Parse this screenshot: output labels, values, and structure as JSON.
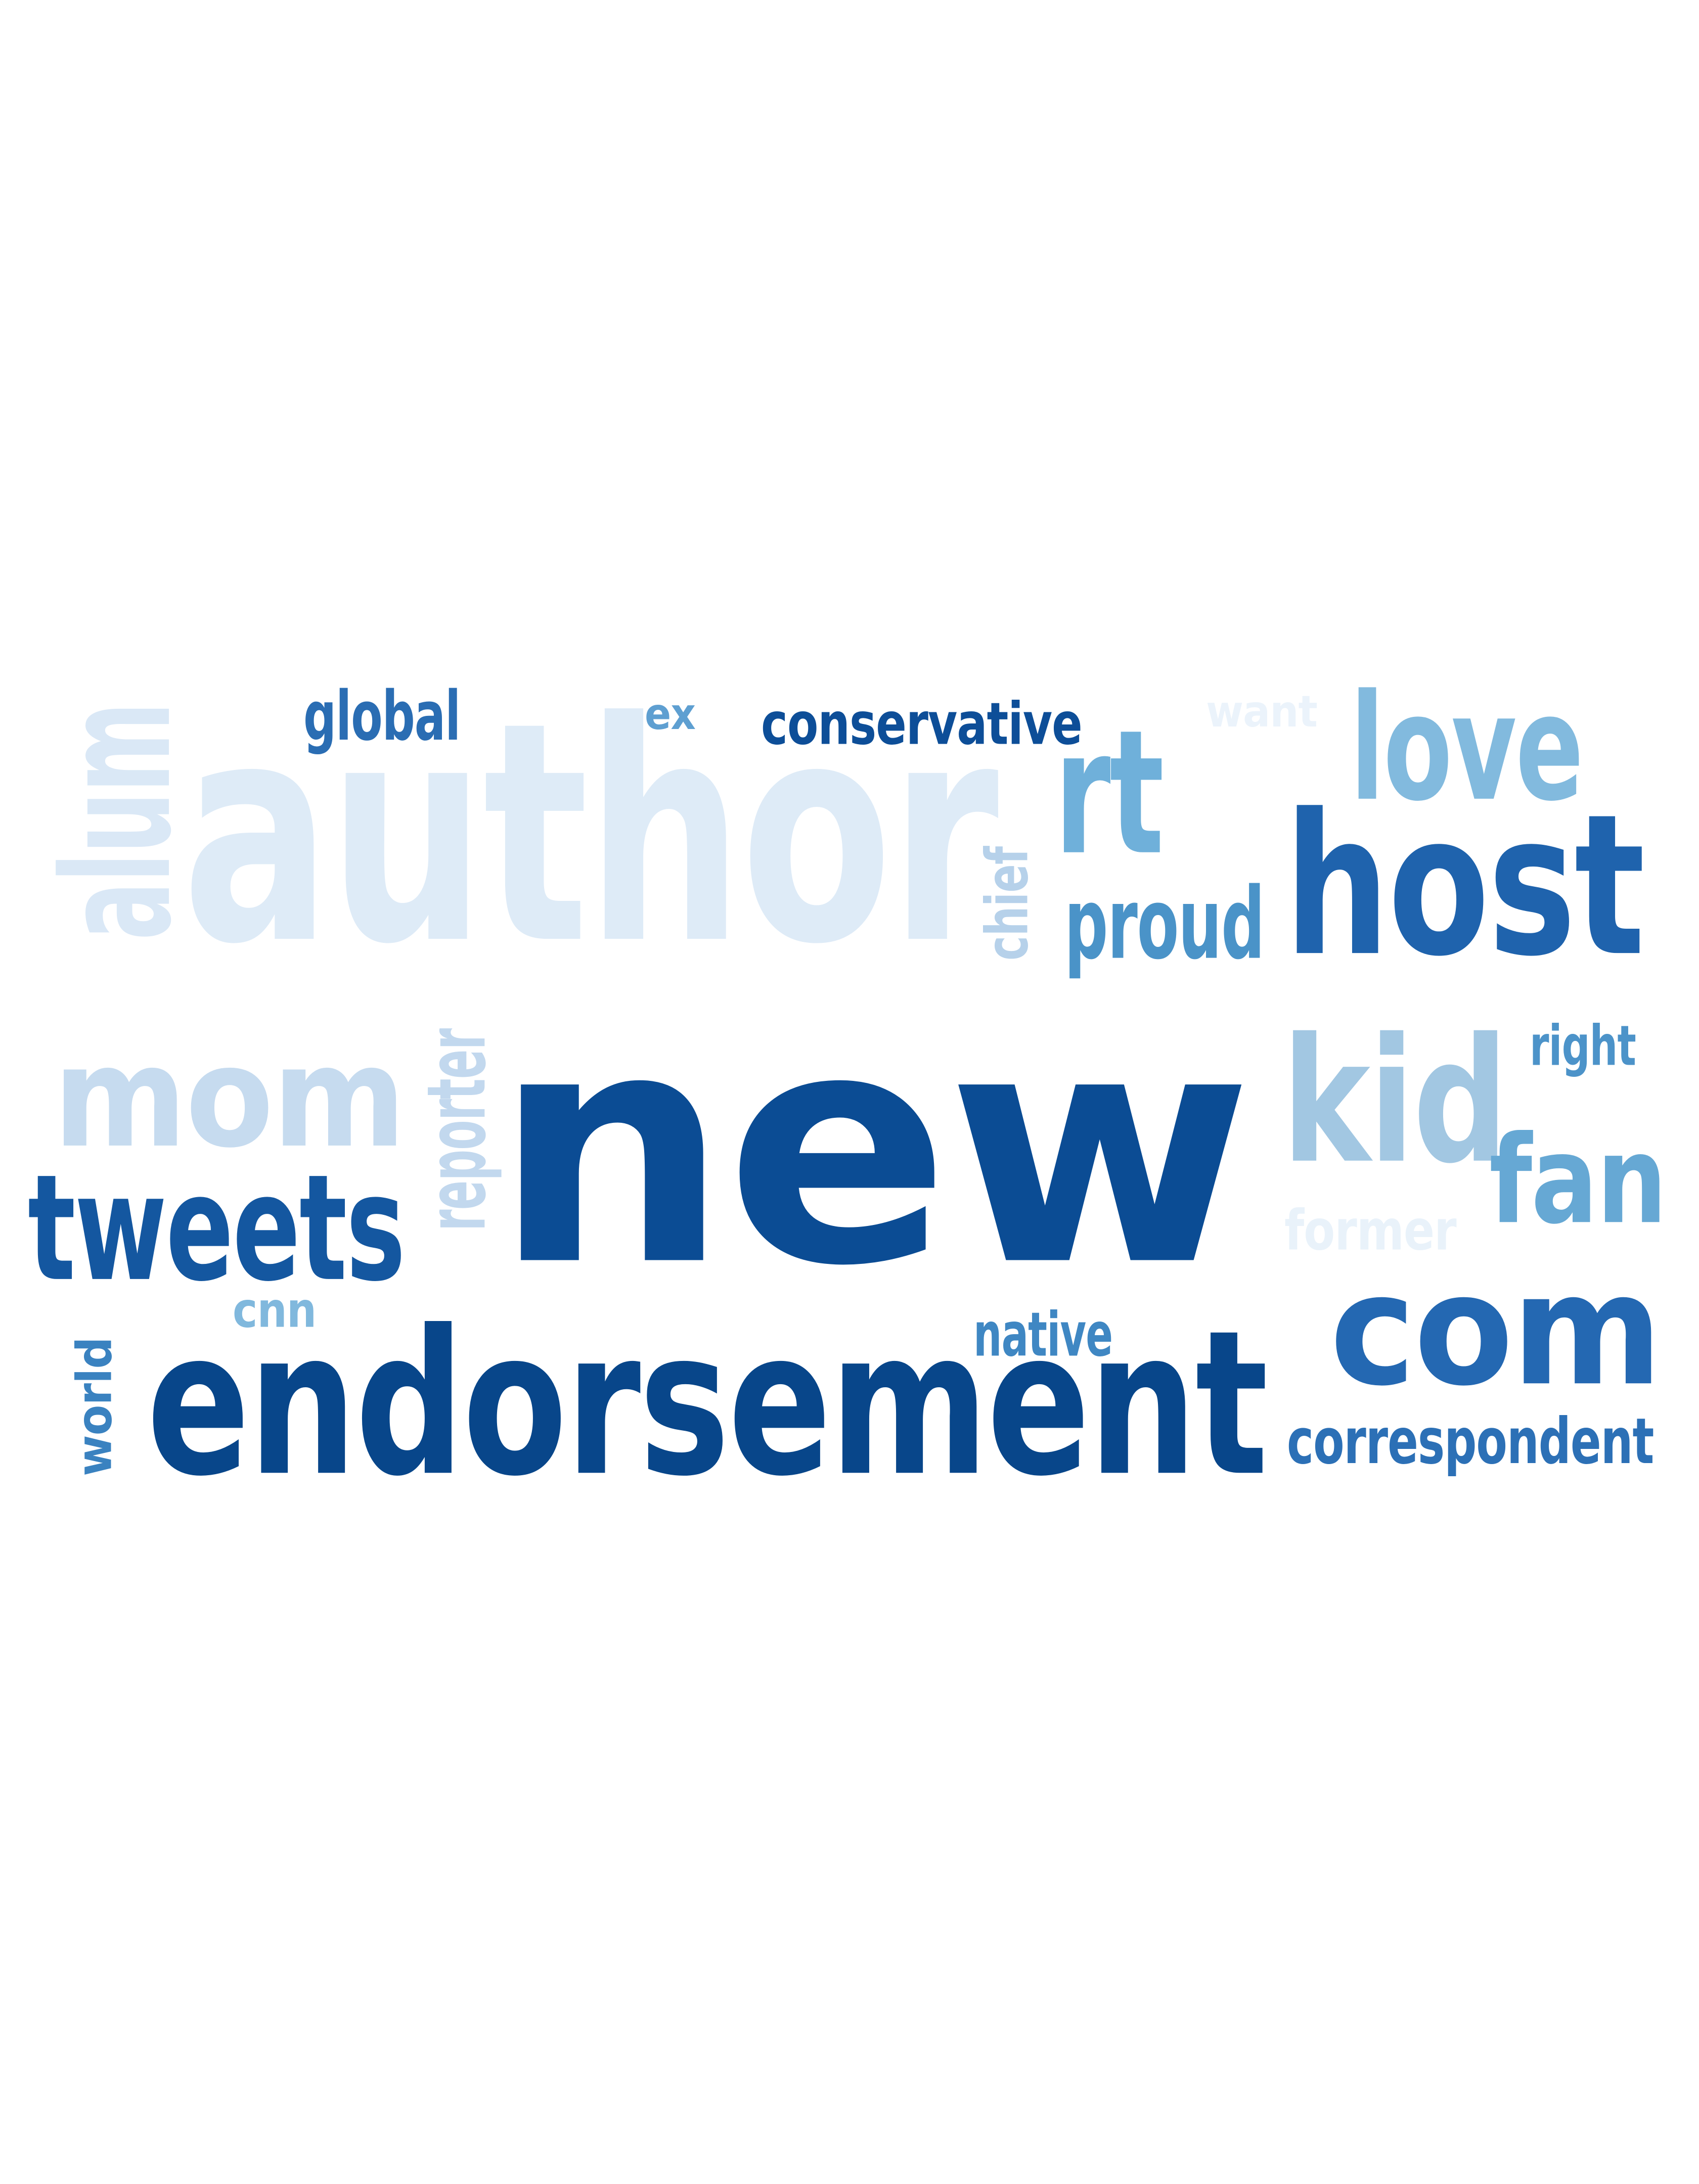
{
  "word_cloud": {
    "words": [
      {
        "text": "new",
        "color": "#0b4c94",
        "rotated": false
      },
      {
        "text": "author",
        "color": "#deebf7",
        "rotated": false
      },
      {
        "text": "endorsement",
        "color": "#08468a",
        "rotated": false
      },
      {
        "text": "host",
        "color": "#1f63ad",
        "rotated": false
      },
      {
        "text": "mom",
        "color": "#c6dbef",
        "rotated": false
      },
      {
        "text": "tweets",
        "color": "#1457a0",
        "rotated": false
      },
      {
        "text": "kid",
        "color": "#a2c7e2",
        "rotated": false
      },
      {
        "text": "com",
        "color": "#2468b2",
        "rotated": false
      },
      {
        "text": "fan",
        "color": "#66a8d4",
        "rotated": false
      },
      {
        "text": "love",
        "color": "#82bade",
        "rotated": false
      },
      {
        "text": "rt",
        "color": "#6fb0da",
        "rotated": false
      },
      {
        "text": "alum",
        "color": "#dae8f6",
        "rotated": true
      },
      {
        "text": "proud",
        "color": "#4a93c8",
        "rotated": false
      },
      {
        "text": "conservative",
        "color": "#0d4e98",
        "rotated": false
      },
      {
        "text": "global",
        "color": "#2a6db3",
        "rotated": false
      },
      {
        "text": "correspondent",
        "color": "#2c70b6",
        "rotated": false
      },
      {
        "text": "reporter",
        "color": "#c2d8ee",
        "rotated": true
      },
      {
        "text": "chief",
        "color": "#b6d1ea",
        "rotated": true
      },
      {
        "text": "ex",
        "color": "#5e9fd1",
        "rotated": false
      },
      {
        "text": "want",
        "color": "#ebf3fb",
        "rotated": false
      },
      {
        "text": "right",
        "color": "#4c93c9",
        "rotated": false
      },
      {
        "text": "former",
        "color": "#e9f2fa",
        "rotated": false
      },
      {
        "text": "native",
        "color": "#3f87c3",
        "rotated": false
      },
      {
        "text": "cnn",
        "color": "#80b8dd",
        "rotated": false
      },
      {
        "text": "world",
        "color": "#3a82c0",
        "rotated": true
      }
    ]
  }
}
